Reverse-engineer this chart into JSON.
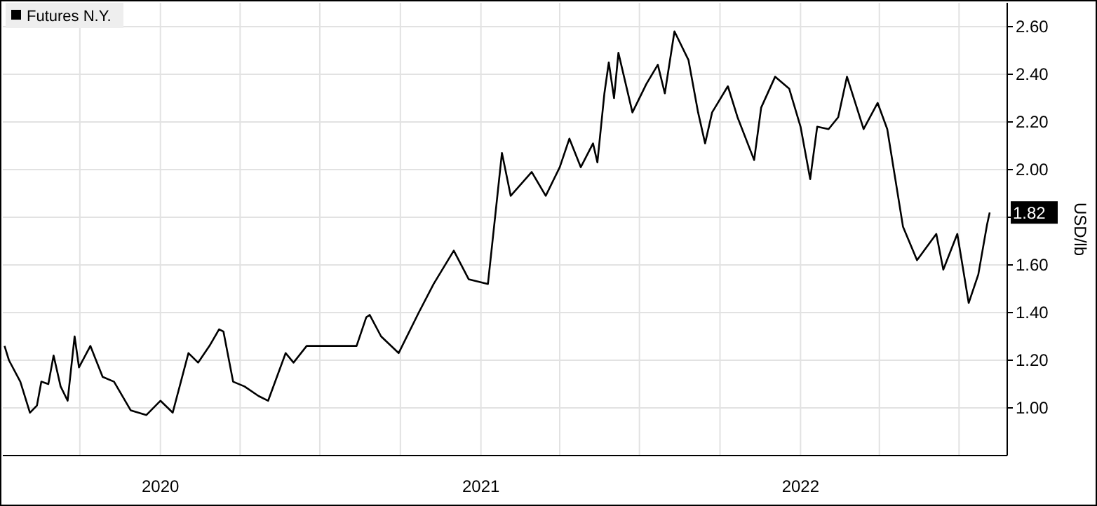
{
  "chart_data": {
    "type": "line",
    "ylabel": "USD/lb",
    "legend": "top left",
    "grid": true,
    "xlim": [
      "2019-07-05",
      "2022-08-25"
    ],
    "xticks": [
      {
        "value": "2019-10-01",
        "label": null
      },
      {
        "value": "2020-01-01",
        "label": "2020"
      },
      {
        "value": "2020-04-01",
        "label": null
      },
      {
        "value": "2020-07-01",
        "label": null
      },
      {
        "value": "2020-10-01",
        "label": null
      },
      {
        "value": "2021-01-01",
        "label": "2021"
      },
      {
        "value": "2021-04-01",
        "label": null
      },
      {
        "value": "2021-07-01",
        "label": null
      },
      {
        "value": "2021-10-01",
        "label": null
      },
      {
        "value": "2022-01-01",
        "label": "2022"
      },
      {
        "value": "2022-04-01",
        "label": null
      },
      {
        "value": "2022-07-01",
        "label": null
      }
    ],
    "ylim": [
      0.8,
      2.7
    ],
    "yticks": [
      {
        "value": 1,
        "label": "1.00"
      },
      {
        "value": 1.2,
        "label": "1.20"
      },
      {
        "value": 1.4,
        "label": "1.40"
      },
      {
        "value": 1.6,
        "label": "1.60"
      },
      {
        "value": 1.8,
        "label": null
      },
      {
        "value": 2,
        "label": "2.00"
      },
      {
        "value": 2.2,
        "label": "2.20"
      },
      {
        "value": 2.4,
        "label": "2.40"
      },
      {
        "value": 2.6,
        "label": "2.60"
      }
    ],
    "annotations": [
      {
        "text": "1.82",
        "x": "2022-08-05",
        "y": 1.82
      }
    ],
    "series": [
      {
        "name": "Futures N.Y.",
        "color": "#000000",
        "x": [
          "2019-07-07",
          "2019-07-12",
          "2019-07-25",
          "2019-08-05",
          "2019-08-13",
          "2019-08-18",
          "2019-08-26",
          "2019-09-01",
          "2019-09-09",
          "2019-09-17",
          "2019-09-25",
          "2019-09-30",
          "2019-10-13",
          "2019-10-27",
          "2019-11-09",
          "2019-11-28",
          "2019-12-16",
          "2020-01-01",
          "2020-01-15",
          "2020-02-02",
          "2020-02-13",
          "2020-02-26",
          "2020-03-08",
          "2020-03-13",
          "2020-03-24",
          "2020-04-06",
          "2020-04-22",
          "2020-05-03",
          "2020-05-23",
          "2020-06-01",
          "2020-06-16",
          "2020-07-06",
          "2020-07-22",
          "2020-08-12",
          "2020-08-23",
          "2020-08-27",
          "2020-09-09",
          "2020-09-29",
          "2020-10-22",
          "2020-11-08",
          "2020-12-01",
          "2020-12-18",
          "2021-01-09",
          "2021-01-25",
          "2021-02-04",
          "2021-02-28",
          "2021-03-16",
          "2021-04-01",
          "2021-04-12",
          "2021-04-25",
          "2021-05-09",
          "2021-05-14",
          "2021-05-22",
          "2021-05-27",
          "2021-06-02",
          "2021-06-07",
          "2021-06-23",
          "2021-07-09",
          "2021-07-22",
          "2021-07-30",
          "2021-08-10",
          "2021-08-26",
          "2021-09-06",
          "2021-09-14",
          "2021-09-22",
          "2021-10-10",
          "2021-10-21",
          "2021-11-09",
          "2021-11-17",
          "2021-12-03",
          "2021-12-19",
          "2022-01-01",
          "2022-01-12",
          "2022-01-20",
          "2022-02-02",
          "2022-02-13",
          "2022-02-23",
          "2022-03-14",
          "2022-03-30",
          "2022-04-10",
          "2022-04-28",
          "2022-05-14",
          "2022-06-05",
          "2022-06-13",
          "2022-06-29",
          "2022-07-12",
          "2022-07-23",
          "2022-08-02",
          "2022-08-05"
        ],
        "values": [
          1.26,
          1.2,
          1.11,
          0.98,
          1.01,
          1.11,
          1.1,
          1.22,
          1.09,
          1.03,
          1.3,
          1.17,
          1.26,
          1.13,
          1.11,
          0.99,
          0.97,
          1.03,
          0.98,
          1.23,
          1.19,
          1.26,
          1.33,
          1.32,
          1.11,
          1.09,
          1.05,
          1.03,
          1.23,
          1.19,
          1.26,
          1.26,
          1.26,
          1.26,
          1.38,
          1.39,
          1.3,
          1.23,
          1.4,
          1.52,
          1.66,
          1.54,
          1.52,
          2.07,
          1.89,
          1.99,
          1.89,
          2.01,
          2.13,
          2.01,
          2.11,
          2.03,
          2.32,
          2.45,
          2.3,
          2.49,
          2.24,
          2.36,
          2.44,
          2.32,
          2.58,
          2.46,
          2.24,
          2.11,
          2.24,
          2.35,
          2.22,
          2.04,
          2.26,
          2.39,
          2.34,
          2.18,
          1.96,
          2.18,
          2.17,
          2.22,
          2.39,
          2.17,
          2.28,
          2.17,
          1.76,
          1.62,
          1.73,
          1.58,
          1.73,
          1.44,
          1.56,
          1.77,
          1.82
        ]
      }
    ]
  }
}
